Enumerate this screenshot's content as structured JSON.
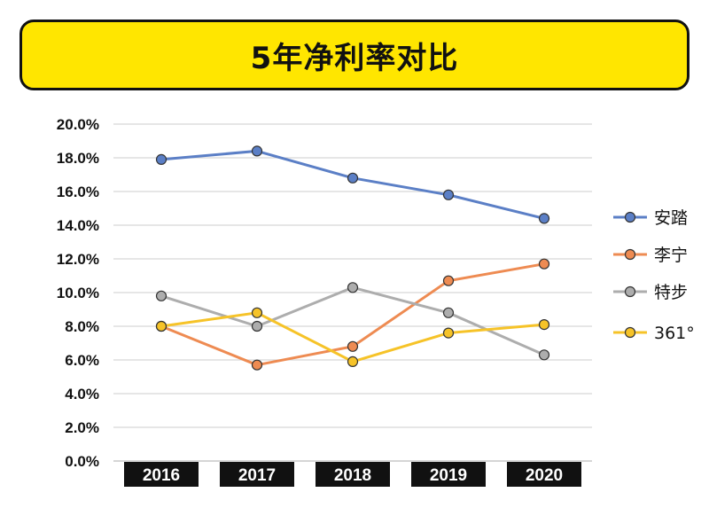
{
  "title": "5年净利率对比",
  "chart_data": {
    "type": "line",
    "title": "5年净利率对比",
    "x": [
      "2016",
      "2017",
      "2018",
      "2019",
      "2020"
    ],
    "yticks": [
      "0.0%",
      "2.0%",
      "4.0%",
      "6.0%",
      "8.0%",
      "10.0%",
      "12.0%",
      "14.0%",
      "16.0%",
      "18.0%",
      "20.0%"
    ],
    "ylim": [
      0,
      20
    ],
    "grid": true,
    "legend_position": "right",
    "series": [
      {
        "name": "安踏",
        "color": "#5B7FC6",
        "values": [
          17.9,
          18.4,
          16.8,
          15.8,
          14.4
        ]
      },
      {
        "name": "李宁",
        "color": "#EE8B52",
        "values": [
          8.0,
          5.7,
          6.8,
          10.7,
          11.7
        ]
      },
      {
        "name": "特步",
        "color": "#ADADAD",
        "values": [
          9.8,
          8.0,
          10.3,
          8.8,
          6.3
        ]
      },
      {
        "name": "361°",
        "color": "#F6C328",
        "values": [
          8.0,
          8.8,
          5.9,
          7.6,
          8.1
        ]
      }
    ]
  }
}
